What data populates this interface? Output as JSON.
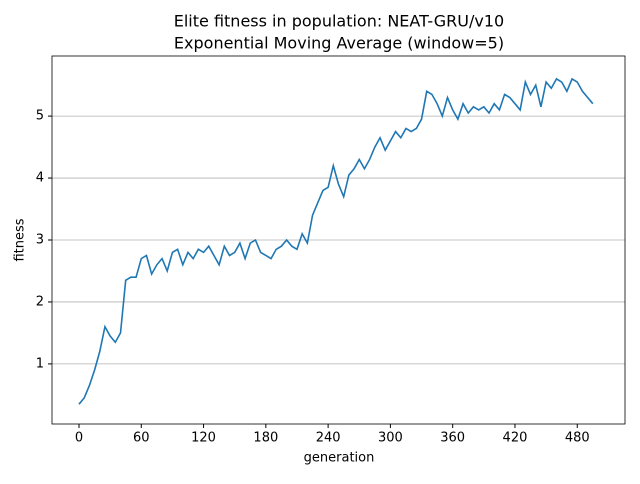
{
  "chart_data": {
    "type": "line",
    "title": "Elite fitness in population: NEAT-GRU/v10",
    "subtitle": "Exponential Moving Average (window=5)",
    "x_label": "generation",
    "y_label": "fitness",
    "x": [
      0,
      5,
      10,
      15,
      20,
      25,
      30,
      35,
      40,
      45,
      50,
      55,
      60,
      65,
      70,
      75,
      80,
      85,
      90,
      95,
      100,
      105,
      110,
      115,
      120,
      125,
      130,
      135,
      140,
      145,
      150,
      155,
      160,
      165,
      170,
      175,
      180,
      185,
      190,
      195,
      200,
      205,
      210,
      215,
      220,
      225,
      230,
      235,
      240,
      245,
      250,
      255,
      260,
      265,
      270,
      275,
      280,
      285,
      290,
      295,
      300,
      305,
      310,
      315,
      320,
      325,
      330,
      335,
      340,
      345,
      350,
      355,
      360,
      365,
      370,
      375,
      380,
      385,
      390,
      395,
      400,
      405,
      410,
      415,
      420,
      425,
      430,
      435,
      440,
      445,
      450,
      455,
      460,
      465,
      470,
      475,
      480,
      485,
      490,
      495
    ],
    "series": [
      {
        "name": "fitness",
        "color": "#1f77b4",
        "values": [
          0.35,
          0.45,
          0.65,
          0.9,
          1.2,
          1.6,
          1.45,
          1.35,
          1.5,
          2.35,
          2.4,
          2.4,
          2.7,
          2.75,
          2.45,
          2.6,
          2.7,
          2.5,
          2.8,
          2.85,
          2.6,
          2.8,
          2.7,
          2.85,
          2.8,
          2.9,
          2.75,
          2.6,
          2.9,
          2.75,
          2.8,
          2.95,
          2.7,
          2.95,
          3.0,
          2.8,
          2.75,
          2.7,
          2.85,
          2.9,
          3.0,
          2.9,
          2.85,
          3.1,
          2.95,
          3.4,
          3.6,
          3.8,
          3.85,
          4.2,
          3.9,
          3.7,
          4.05,
          4.15,
          4.3,
          4.15,
          4.3,
          4.5,
          4.65,
          4.45,
          4.6,
          4.75,
          4.65,
          4.8,
          4.75,
          4.8,
          4.95,
          5.4,
          5.35,
          5.2,
          5.0,
          5.3,
          5.1,
          4.95,
          5.2,
          5.05,
          5.15,
          5.1,
          5.15,
          5.05,
          5.2,
          5.1,
          5.35,
          5.3,
          5.2,
          5.1,
          5.55,
          5.35,
          5.5,
          5.15,
          5.55,
          5.45,
          5.6,
          5.55,
          5.4,
          5.6,
          5.55,
          5.4,
          5.3,
          5.2
        ]
      }
    ],
    "xlim": [
      -26,
      526
    ],
    "ylim": [
      0.03,
      5.97
    ],
    "xticks": [
      0,
      60,
      120,
      180,
      240,
      300,
      360,
      420,
      480
    ],
    "yticks": [
      1,
      2,
      3,
      4,
      5
    ],
    "grid": "y"
  }
}
